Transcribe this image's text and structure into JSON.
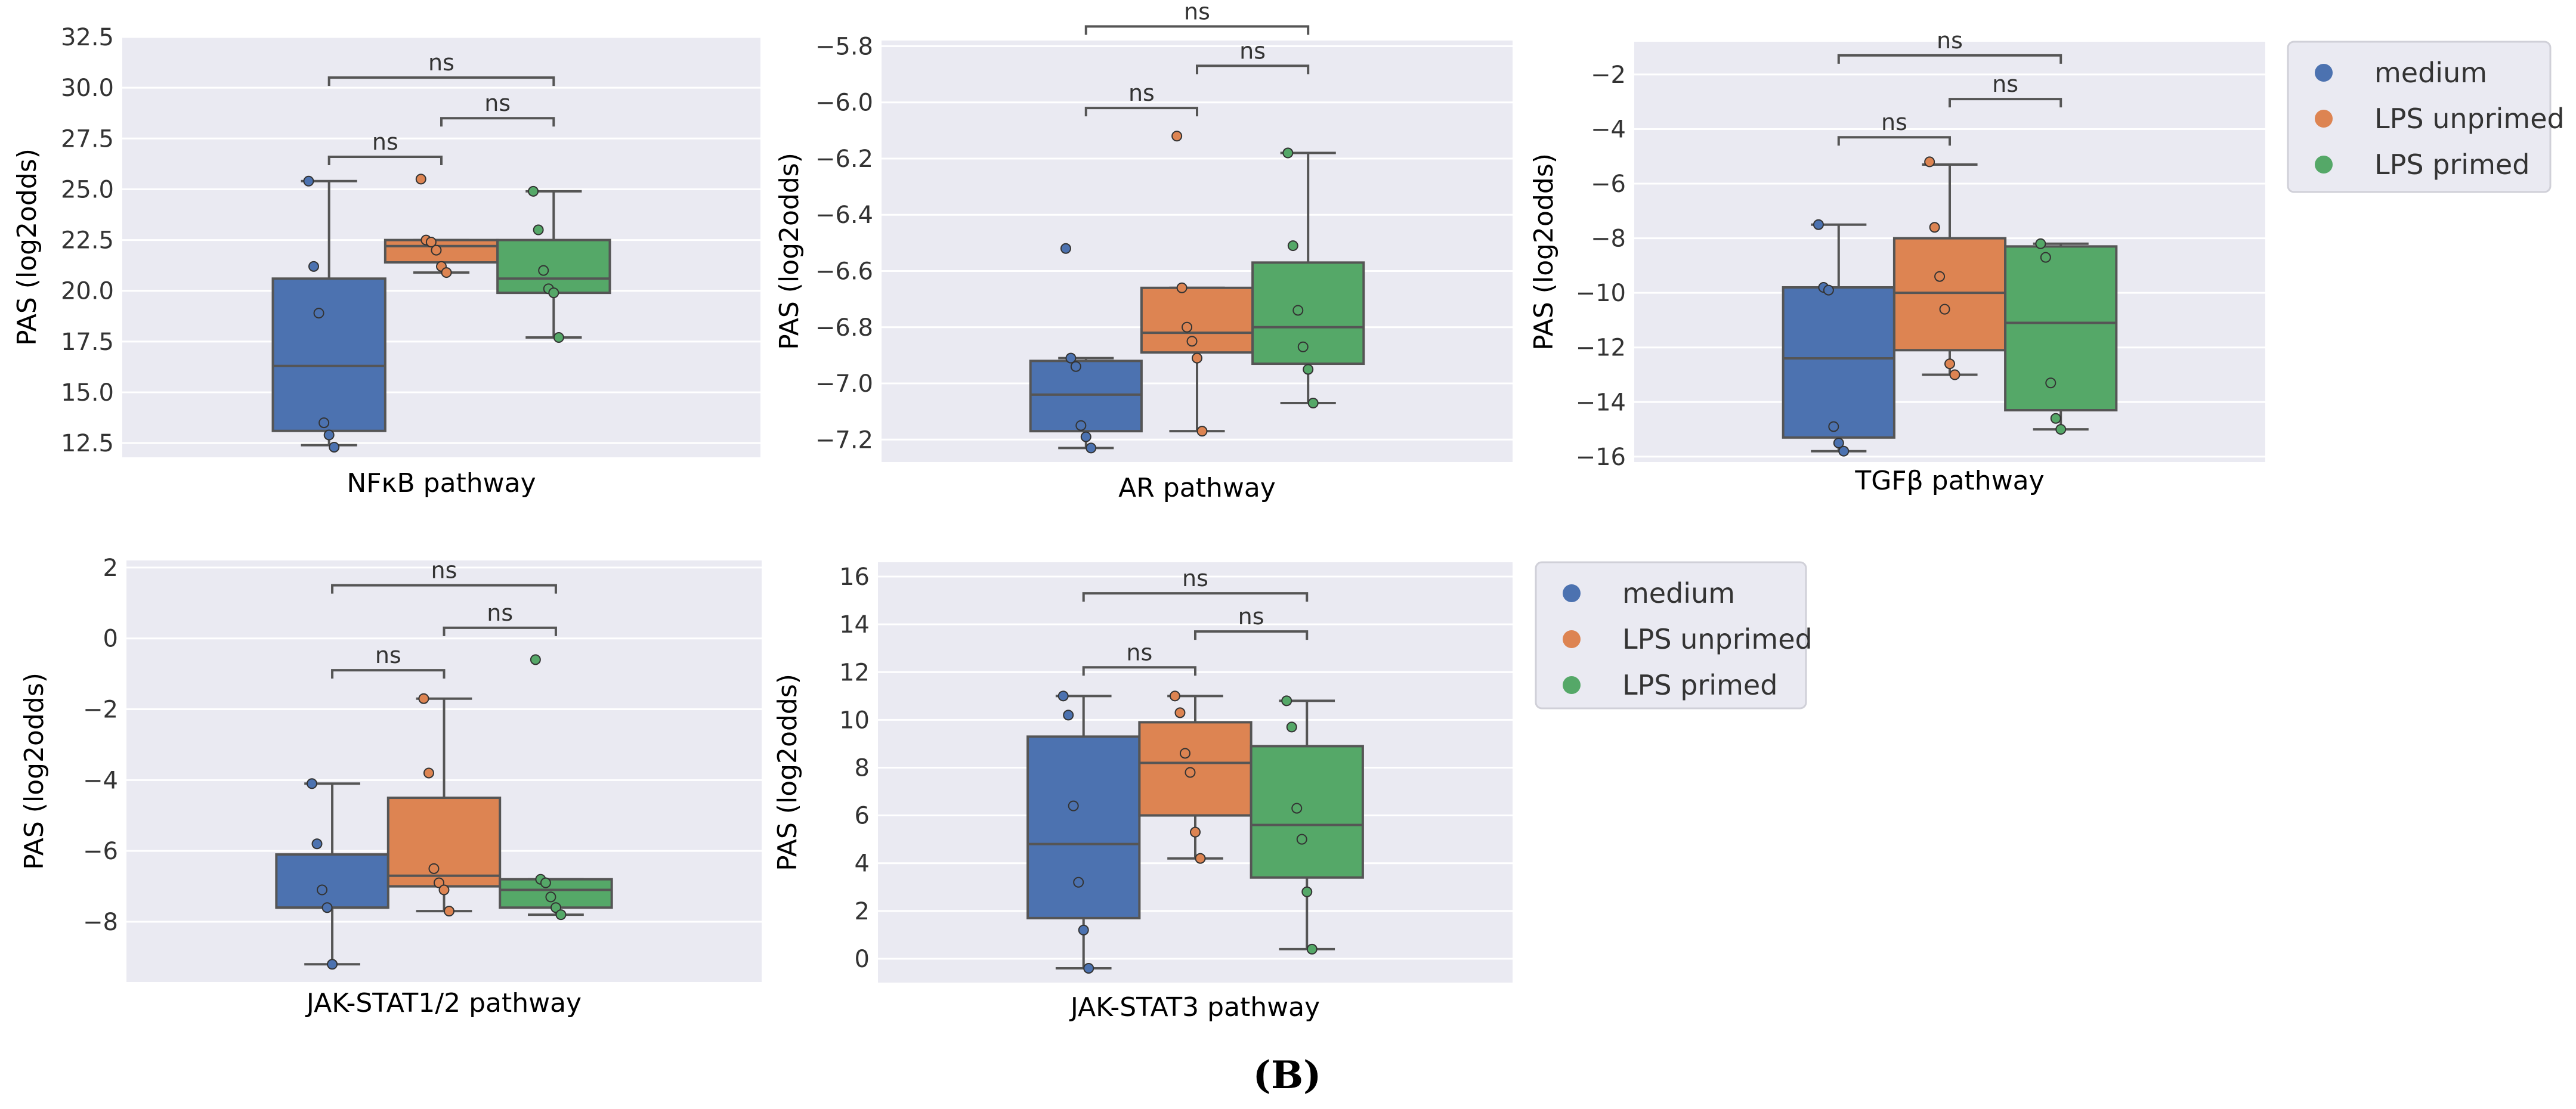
{
  "chart_data": [
    {
      "type": "box",
      "xlabel": "NFκB pathway",
      "ylabel": "PAS (log2odds)",
      "ylim": [
        11.8,
        32.5
      ],
      "yticks": [
        12.5,
        15.0,
        17.5,
        20.0,
        22.5,
        25.0,
        27.5,
        30.0,
        32.5
      ],
      "ytick_labels": [
        "12.5",
        "15.0",
        "17.5",
        "20.0",
        "22.5",
        "25.0",
        "27.5",
        "30.0",
        "32.5"
      ],
      "series": [
        {
          "name": "medium",
          "box": {
            "whislo": 12.4,
            "q1": 13.1,
            "med": 16.3,
            "q3": 20.6,
            "whishi": 25.4
          },
          "points": [
            25.4,
            21.2,
            18.9,
            13.5,
            12.9,
            12.3
          ]
        },
        {
          "name": "LPS unprimed",
          "box": {
            "whislo": 20.9,
            "q1": 21.4,
            "med": 22.2,
            "q3": 22.5,
            "whishi": 22.5
          },
          "points": [
            25.5,
            22.5,
            22.4,
            22.0,
            21.2,
            20.9
          ]
        },
        {
          "name": "LPS primed",
          "box": {
            "whislo": 17.7,
            "q1": 19.9,
            "med": 20.6,
            "q3": 22.5,
            "whishi": 24.9
          },
          "points": [
            24.9,
            23.0,
            21.0,
            20.1,
            19.9,
            17.7
          ]
        }
      ],
      "annotations": [
        {
          "from": 0,
          "to": 1,
          "y": 26.6,
          "text": "ns"
        },
        {
          "from": 1,
          "to": 2,
          "y": 28.5,
          "text": "ns"
        },
        {
          "from": 0,
          "to": 2,
          "y": 30.5,
          "text": "ns"
        }
      ]
    },
    {
      "type": "box",
      "xlabel": "AR pathway",
      "ylabel": "PAS (log2odds)",
      "ylim": [
        -7.28,
        -5.78
      ],
      "yticks": [
        -7.2,
        -7.0,
        -6.8,
        -6.6,
        -6.4,
        -6.2,
        -6.0,
        -5.8
      ],
      "ytick_labels": [
        "−7.2",
        "−7.0",
        "−6.8",
        "−6.6",
        "−6.4",
        "−6.2",
        "−6.0",
        "−5.8"
      ],
      "series": [
        {
          "name": "medium",
          "box": {
            "whislo": -7.23,
            "q1": -7.17,
            "med": -7.04,
            "q3": -6.92,
            "whishi": -6.91
          },
          "points": [
            -6.52,
            -6.91,
            -6.94,
            -7.15,
            -7.19,
            -7.23
          ]
        },
        {
          "name": "LPS unprimed",
          "box": {
            "whislo": -7.17,
            "q1": -6.89,
            "med": -6.82,
            "q3": -6.66,
            "whishi": -6.66
          },
          "points": [
            -6.12,
            -6.66,
            -6.8,
            -6.85,
            -6.91,
            -7.17
          ]
        },
        {
          "name": "LPS primed",
          "box": {
            "whislo": -7.07,
            "q1": -6.93,
            "med": -6.8,
            "q3": -6.57,
            "whishi": -6.18
          },
          "points": [
            -6.18,
            -6.51,
            -6.74,
            -6.87,
            -6.95,
            -7.07
          ]
        }
      ],
      "annotations": [
        {
          "from": 0,
          "to": 1,
          "y": -6.02,
          "text": "ns"
        },
        {
          "from": 1,
          "to": 2,
          "y": -5.87,
          "text": "ns"
        },
        {
          "from": 0,
          "to": 2,
          "y": -5.73,
          "text": "ns"
        }
      ]
    },
    {
      "type": "box",
      "xlabel": "TGFβ pathway",
      "ylabel": "PAS (log2odds)",
      "ylim": [
        -16.2,
        -0.8
      ],
      "yticks": [
        -16,
        -14,
        -12,
        -10,
        -8,
        -6,
        -4,
        -2
      ],
      "ytick_labels": [
        "−16",
        "−14",
        "−12",
        "−10",
        "−8",
        "−6",
        "−4",
        "−2"
      ],
      "series": [
        {
          "name": "medium",
          "box": {
            "whislo": -15.8,
            "q1": -15.3,
            "med": -12.4,
            "q3": -9.8,
            "whishi": -7.5
          },
          "points": [
            -7.5,
            -9.8,
            -9.9,
            -14.9,
            -15.5,
            -15.8
          ]
        },
        {
          "name": "LPS unprimed",
          "box": {
            "whislo": -13.0,
            "q1": -12.1,
            "med": -10.0,
            "q3": -8.0,
            "whishi": -5.3
          },
          "points": [
            -5.2,
            -7.6,
            -9.4,
            -10.6,
            -12.6,
            -13.0
          ]
        },
        {
          "name": "LPS primed",
          "box": {
            "whislo": -15.0,
            "q1": -14.3,
            "med": -11.1,
            "q3": -8.3,
            "whishi": -8.2
          },
          "points": [
            -8.2,
            -8.7,
            -13.3,
            -14.6,
            -15.0
          ]
        }
      ],
      "annotations": [
        {
          "from": 0,
          "to": 1,
          "y": -4.3,
          "text": "ns"
        },
        {
          "from": 1,
          "to": 2,
          "y": -2.9,
          "text": "ns"
        },
        {
          "from": 0,
          "to": 2,
          "y": -1.3,
          "text": "ns"
        }
      ]
    },
    {
      "type": "box",
      "xlabel": "JAK-STAT1/2 pathway",
      "ylabel": "PAS (log2odds)",
      "ylim": [
        -9.7,
        2.2
      ],
      "yticks": [
        -8,
        -6,
        -4,
        -2,
        0,
        2
      ],
      "ytick_labels": [
        "−8",
        "−6",
        "−4",
        "−2",
        "0",
        "2"
      ],
      "series": [
        {
          "name": "medium",
          "box": {
            "whislo": -9.2,
            "q1": -7.6,
            "med": -7.6,
            "q3": -6.1,
            "whishi": -4.1
          },
          "points": [
            -4.1,
            -5.8,
            -7.1,
            -7.6,
            -9.2
          ]
        },
        {
          "name": "LPS unprimed",
          "box": {
            "whislo": -7.7,
            "q1": -7.0,
            "med": -6.7,
            "q3": -4.5,
            "whishi": -1.7
          },
          "points": [
            -1.7,
            -3.8,
            -6.5,
            -6.9,
            -7.1,
            -7.7
          ]
        },
        {
          "name": "LPS primed",
          "box": {
            "whislo": -7.8,
            "q1": -7.6,
            "med": -7.1,
            "q3": -6.8,
            "whishi": -6.8
          },
          "points": [
            -0.6,
            -6.8,
            -6.9,
            -7.3,
            -7.6,
            -7.8
          ]
        }
      ],
      "annotations": [
        {
          "from": 0,
          "to": 1,
          "y": -0.9,
          "text": "ns"
        },
        {
          "from": 1,
          "to": 2,
          "y": 0.3,
          "text": "ns"
        },
        {
          "from": 0,
          "to": 2,
          "y": 1.5,
          "text": "ns"
        }
      ]
    },
    {
      "type": "box",
      "xlabel": "JAK-STAT3 pathway",
      "ylabel": "PAS (log2odds)",
      "ylim": [
        -1.0,
        16.6
      ],
      "yticks": [
        0,
        2,
        4,
        6,
        8,
        10,
        12,
        14,
        16
      ],
      "ytick_labels": [
        "0",
        "2",
        "4",
        "6",
        "8",
        "10",
        "12",
        "14",
        "16"
      ],
      "series": [
        {
          "name": "medium",
          "box": {
            "whislo": -0.4,
            "q1": 1.7,
            "med": 4.8,
            "q3": 9.3,
            "whishi": 11.0
          },
          "points": [
            11.0,
            10.2,
            6.4,
            3.2,
            1.2,
            -0.4
          ]
        },
        {
          "name": "LPS unprimed",
          "box": {
            "whislo": 4.2,
            "q1": 6.0,
            "med": 8.2,
            "q3": 9.9,
            "whishi": 11.0
          },
          "points": [
            11.0,
            10.3,
            8.6,
            7.8,
            5.3,
            4.2
          ]
        },
        {
          "name": "LPS primed",
          "box": {
            "whislo": 0.4,
            "q1": 3.4,
            "med": 5.6,
            "q3": 8.9,
            "whishi": 10.8
          },
          "points": [
            10.8,
            9.7,
            6.3,
            5.0,
            2.8,
            0.4
          ]
        }
      ],
      "annotations": [
        {
          "from": 0,
          "to": 1,
          "y": 12.2,
          "text": "ns"
        },
        {
          "from": 1,
          "to": 2,
          "y": 13.7,
          "text": "ns"
        },
        {
          "from": 0,
          "to": 2,
          "y": 15.3,
          "text": "ns"
        }
      ]
    }
  ],
  "legends": [
    {
      "entries": [
        "medium",
        "LPS unprimed",
        "LPS primed"
      ]
    },
    {
      "entries": [
        "medium",
        "LPS unprimed",
        "LPS primed"
      ]
    }
  ],
  "colors": {
    "box": [
      "#4c72b0",
      "#dd8452",
      "#55a868"
    ],
    "background": "#eaeaf2",
    "grid": "#ffffff",
    "line": "#555555"
  },
  "panel_label": "(B)"
}
